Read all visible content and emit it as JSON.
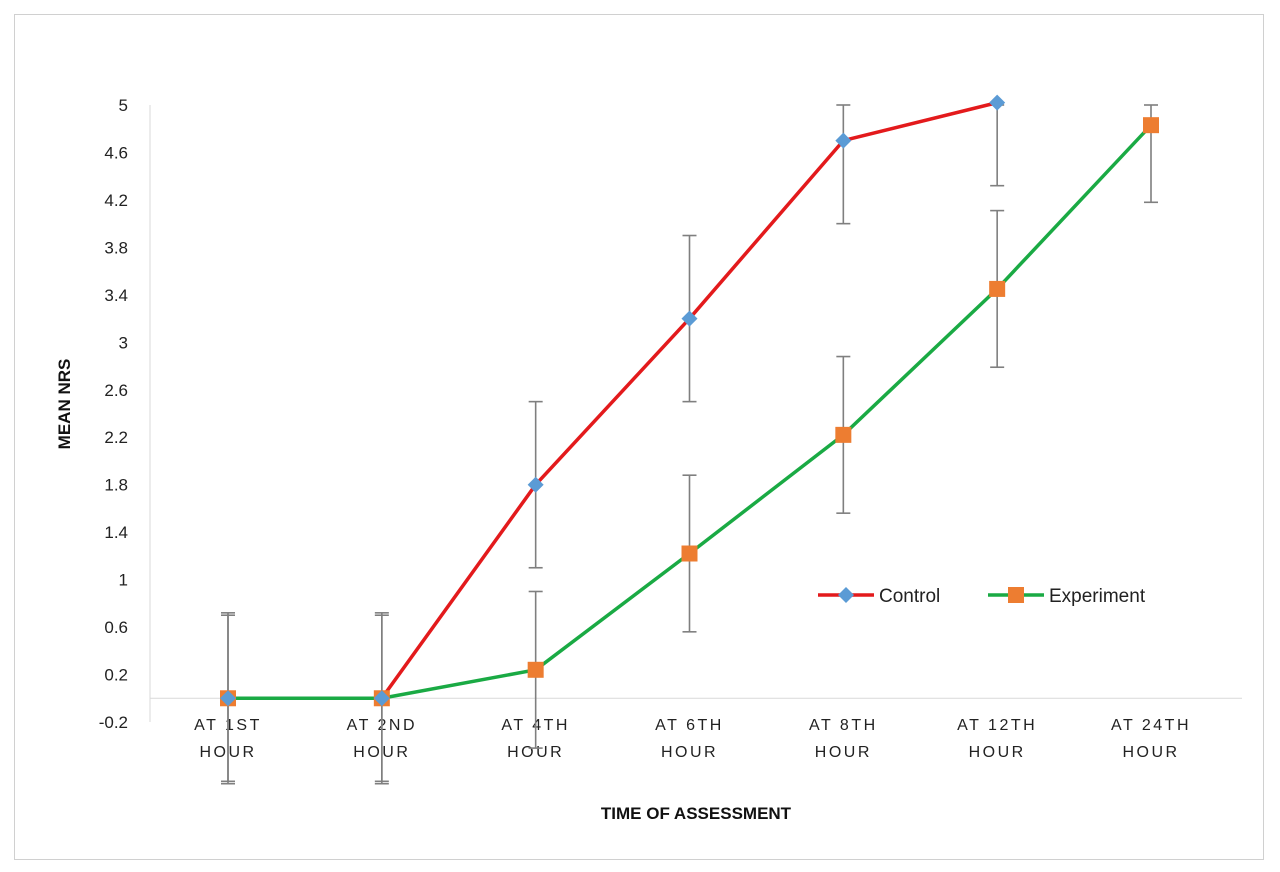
{
  "chart_data": {
    "type": "line",
    "xlabel": "TIME OF ASSESSMENT",
    "ylabel": "MEAN NRS",
    "ylim": [
      -0.2,
      5
    ],
    "yticks": [
      "-0.2",
      "0.2",
      "0.6",
      "1",
      "1.4",
      "1.8",
      "2.2",
      "2.6",
      "3",
      "3.4",
      "3.8",
      "4.2",
      "4.6",
      "5"
    ],
    "categories": [
      [
        "AT 1ST",
        "HOUR"
      ],
      [
        "AT 2ND",
        "HOUR"
      ],
      [
        "AT 4TH",
        "HOUR"
      ],
      [
        "AT 6TH",
        "HOUR"
      ],
      [
        "AT 8TH",
        "HOUR"
      ],
      [
        "AT 12TH",
        "HOUR"
      ],
      [
        "AT 24TH",
        "HOUR"
      ]
    ],
    "legend_position": "center-right",
    "grid": false,
    "series": [
      {
        "name": "Control",
        "color": "#e31a1c",
        "marker_color": "#5b9bd5",
        "marker": "diamond",
        "values": [
          0,
          0,
          1.8,
          3.2,
          4.7,
          5.02,
          null
        ],
        "error": [
          0.72,
          0.72,
          0.7,
          0.7,
          0.7,
          0.7,
          null
        ]
      },
      {
        "name": "Experiment",
        "color": "#1aaa44",
        "marker_color": "#ed7d31",
        "marker": "square",
        "values": [
          0,
          0,
          0.24,
          1.22,
          2.22,
          3.45,
          4.83
        ],
        "error": [
          0.7,
          0.7,
          0.66,
          0.66,
          0.66,
          0.66,
          0.65
        ]
      }
    ]
  }
}
